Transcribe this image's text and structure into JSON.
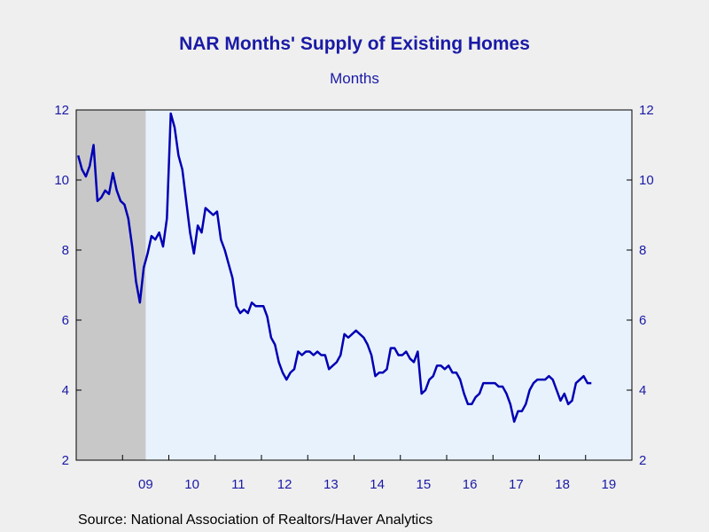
{
  "title": "NAR Months' Supply of Existing Homes",
  "subtitle": "Months",
  "source": "Source:  National Association of Realtors/Haver Analytics",
  "colors": {
    "line": "#0000b4",
    "plot_background": "#e8f2fd",
    "recession_shade": "#c8c8c8",
    "tick_text": "#1a1aa6",
    "page_background": "#efefef"
  },
  "chart_data": {
    "type": "line",
    "title": "NAR Months' Supply of Existing Homes",
    "subtitle": "Months",
    "xlabel": "",
    "ylabel": "",
    "ylim": [
      2,
      12
    ],
    "yticks": [
      2,
      4,
      6,
      8,
      10,
      12
    ],
    "y_axes": "left and right, same scale",
    "x_tick_labels": [
      "09",
      "10",
      "11",
      "12",
      "13",
      "14",
      "15",
      "16",
      "17",
      "18",
      "19"
    ],
    "x_start": "2008-01",
    "x_end": "2019-12",
    "grid": false,
    "shaded_periods": [
      {
        "start": "2008-01",
        "end": "2009-06",
        "label": "recession"
      }
    ],
    "series": [
      {
        "values": [
          [
            10.7,
            10.3,
            10.1,
            10.4,
            11.0,
            9.4,
            9.5,
            9.7,
            9.6,
            10.2,
            9.7,
            9.4
          ],
          [
            9.3,
            8.9,
            8.1,
            7.1,
            6.5,
            7.5,
            7.9,
            8.4,
            8.3,
            8.5,
            8.1,
            8.9
          ],
          [
            11.9,
            11.5,
            10.7,
            10.3,
            9.4,
            8.5,
            7.9,
            8.7,
            8.5,
            9.2,
            9.1,
            9.0
          ],
          [
            9.1,
            8.3,
            8.0,
            7.6,
            7.2,
            6.4,
            6.2,
            6.3,
            6.2,
            6.5,
            6.4,
            6.4
          ],
          [
            6.4,
            6.1,
            5.5,
            5.3,
            4.8,
            4.5,
            4.3,
            4.5,
            4.6,
            5.1,
            5.0,
            5.1
          ],
          [
            5.1,
            5.0,
            5.1,
            5.0,
            5.0,
            4.6,
            4.7,
            4.8,
            5.0,
            5.6,
            5.5,
            5.6
          ],
          [
            5.7,
            5.6,
            5.5,
            5.3,
            5.0,
            4.4,
            4.5,
            4.5,
            4.6,
            5.2,
            5.2,
            5.0
          ],
          [
            5.0,
            5.1,
            4.9,
            4.8,
            5.1,
            3.9,
            4.0,
            4.3,
            4.4,
            4.7,
            4.7,
            4.6
          ],
          [
            4.7,
            4.5,
            4.5,
            4.3,
            3.9,
            3.6,
            3.6,
            3.8,
            3.9,
            4.2,
            4.2,
            4.2
          ],
          [
            4.2,
            4.1,
            4.1,
            3.9,
            3.6,
            3.1,
            3.4,
            3.4,
            3.6,
            4.0,
            4.2,
            4.3
          ],
          [
            4.3,
            4.3,
            4.4,
            4.3,
            4.0,
            3.7,
            3.9,
            3.6,
            3.7,
            4.2,
            4.3,
            4.4
          ],
          [
            4.2,
            4.2
          ]
        ]
      }
    ]
  }
}
